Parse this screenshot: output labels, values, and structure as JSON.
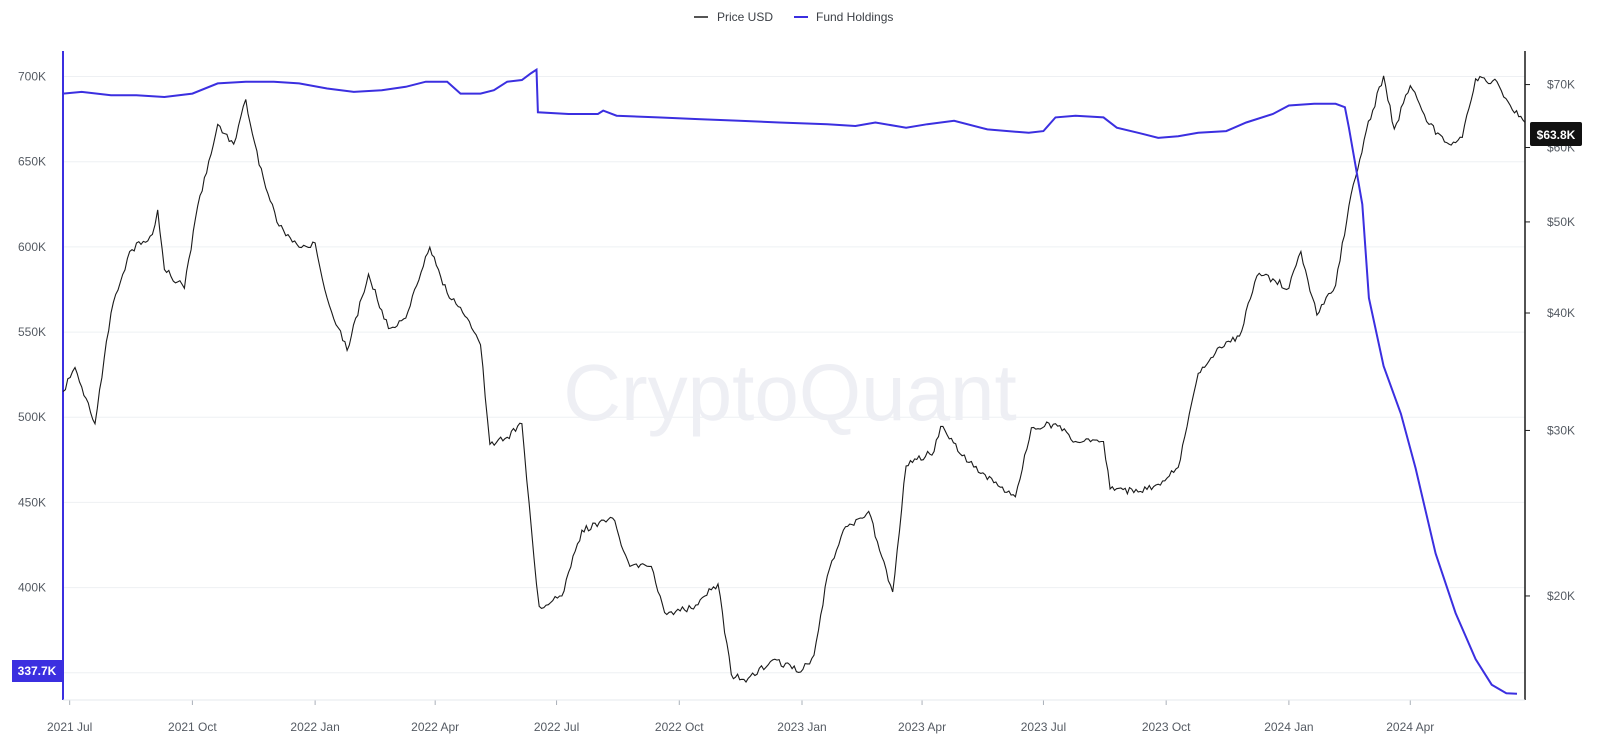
{
  "legend": [
    {
      "label": "Price USD",
      "color": "#555555"
    },
    {
      "label": "Fund Holdings",
      "color": "#3b2fe0"
    }
  ],
  "watermark": "CryptoQuant",
  "chart_data": {
    "type": "line",
    "title": "",
    "x_ticks": [
      "2021 Jul",
      "2021 Oct",
      "2022 Jan",
      "2022 Apr",
      "2022 Jul",
      "2022 Oct",
      "2023 Jan",
      "2023 Apr",
      "2023 Jul",
      "2023 Oct",
      "2024 Jan",
      "2024 Apr"
    ],
    "x_range": [
      "2021-06-26",
      "2024-06-26"
    ],
    "left_axis": {
      "ticks": [
        "350K",
        "400K",
        "450K",
        "500K",
        "550K",
        "600K",
        "650K",
        "700K"
      ],
      "range": [
        334000,
        715000
      ]
    },
    "right_axis": {
      "ticks": [
        "$20K",
        "$30K",
        "$40K",
        "$50K",
        "$60K",
        "$70K"
      ],
      "scale": "log",
      "range": [
        15500,
        76000
      ]
    },
    "last_values": {
      "fund_holdings": "337.7K",
      "price": "$63.8K"
    },
    "grid": true,
    "legend_position": "top-center",
    "series": [
      {
        "name": "Fund Holdings",
        "axis": "left",
        "color": "#3b2fe0",
        "points": [
          [
            "2021-06-26",
            690000
          ],
          [
            "2021-07-10",
            691000
          ],
          [
            "2021-08-01",
            689000
          ],
          [
            "2021-08-20",
            689000
          ],
          [
            "2021-09-10",
            688000
          ],
          [
            "2021-10-01",
            690000
          ],
          [
            "2021-10-20",
            696000
          ],
          [
            "2021-11-10",
            697000
          ],
          [
            "2021-12-01",
            697000
          ],
          [
            "2021-12-20",
            696000
          ],
          [
            "2022-01-10",
            693000
          ],
          [
            "2022-01-30",
            691000
          ],
          [
            "2022-02-20",
            692000
          ],
          [
            "2022-03-10",
            694000
          ],
          [
            "2022-03-25",
            697000
          ],
          [
            "2022-04-10",
            697000
          ],
          [
            "2022-04-20",
            690000
          ],
          [
            "2022-05-05",
            690000
          ],
          [
            "2022-05-15",
            692000
          ],
          [
            "2022-05-25",
            697000
          ],
          [
            "2022-06-05",
            698000
          ],
          [
            "2022-06-12",
            702000
          ],
          [
            "2022-06-16",
            704000
          ],
          [
            "2022-06-17",
            679000
          ],
          [
            "2022-07-10",
            678000
          ],
          [
            "2022-07-20",
            678000
          ],
          [
            "2022-08-01",
            678000
          ],
          [
            "2022-08-05",
            680000
          ],
          [
            "2022-08-15",
            677000
          ],
          [
            "2022-09-15",
            676000
          ],
          [
            "2022-10-15",
            675000
          ],
          [
            "2022-11-15",
            674000
          ],
          [
            "2022-12-15",
            673000
          ],
          [
            "2023-01-20",
            672000
          ],
          [
            "2023-02-10",
            671000
          ],
          [
            "2023-02-25",
            673000
          ],
          [
            "2023-03-20",
            670000
          ],
          [
            "2023-04-05",
            672000
          ],
          [
            "2023-04-25",
            674000
          ],
          [
            "2023-05-20",
            669000
          ],
          [
            "2023-06-20",
            667000
          ],
          [
            "2023-07-01",
            668000
          ],
          [
            "2023-07-10",
            676000
          ],
          [
            "2023-07-25",
            677000
          ],
          [
            "2023-08-15",
            676000
          ],
          [
            "2023-08-25",
            670000
          ],
          [
            "2023-09-10",
            667000
          ],
          [
            "2023-09-25",
            664000
          ],
          [
            "2023-10-10",
            665000
          ],
          [
            "2023-10-25",
            667000
          ],
          [
            "2023-11-15",
            668000
          ],
          [
            "2023-11-30",
            673000
          ],
          [
            "2023-12-20",
            678000
          ],
          [
            "2024-01-01",
            683000
          ],
          [
            "2024-01-20",
            684000
          ],
          [
            "2024-02-05",
            684000
          ],
          [
            "2024-02-12",
            682000
          ],
          [
            "2024-02-15",
            670000
          ],
          [
            "2024-02-25",
            625000
          ],
          [
            "2024-03-01",
            570000
          ],
          [
            "2024-03-12",
            530000
          ],
          [
            "2024-03-25",
            502000
          ],
          [
            "2024-04-05",
            470000
          ],
          [
            "2024-04-20",
            420000
          ],
          [
            "2024-05-05",
            385000
          ],
          [
            "2024-05-20",
            358000
          ],
          [
            "2024-06-01",
            343000
          ],
          [
            "2024-06-12",
            338000
          ],
          [
            "2024-06-20",
            337700
          ]
        ]
      },
      {
        "name": "Price USD",
        "axis": "right",
        "color": "#1a1a1a",
        "points": [
          [
            "2021-06-26",
            33000
          ],
          [
            "2021-07-05",
            35000
          ],
          [
            "2021-07-20",
            30500
          ],
          [
            "2021-08-01",
            40000
          ],
          [
            "2021-08-15",
            46500
          ],
          [
            "2021-09-01",
            48500
          ],
          [
            "2021-09-05",
            51500
          ],
          [
            "2021-09-10",
            44500
          ],
          [
            "2021-09-25",
            42500
          ],
          [
            "2021-10-05",
            52000
          ],
          [
            "2021-10-20",
            63500
          ],
          [
            "2021-11-01",
            60500
          ],
          [
            "2021-11-10",
            67500
          ],
          [
            "2021-11-20",
            57500
          ],
          [
            "2021-12-05",
            49500
          ],
          [
            "2021-12-20",
            47000
          ],
          [
            "2022-01-01",
            47500
          ],
          [
            "2022-01-10",
            41500
          ],
          [
            "2022-01-25",
            36500
          ],
          [
            "2022-02-10",
            44000
          ],
          [
            "2022-02-25",
            38500
          ],
          [
            "2022-03-10",
            39500
          ],
          [
            "2022-03-28",
            47000
          ],
          [
            "2022-04-10",
            42000
          ],
          [
            "2022-04-25",
            39500
          ],
          [
            "2022-05-05",
            37000
          ],
          [
            "2022-05-12",
            29000
          ],
          [
            "2022-05-25",
            29500
          ],
          [
            "2022-06-05",
            30500
          ],
          [
            "2022-06-14",
            22000
          ],
          [
            "2022-06-18",
            19500
          ],
          [
            "2022-07-05",
            20000
          ],
          [
            "2022-07-20",
            23500
          ],
          [
            "2022-08-12",
            24200
          ],
          [
            "2022-08-25",
            21500
          ],
          [
            "2022-09-10",
            21500
          ],
          [
            "2022-09-20",
            19200
          ],
          [
            "2022-10-10",
            19400
          ],
          [
            "2022-10-30",
            20600
          ],
          [
            "2022-11-09",
            16500
          ],
          [
            "2022-11-20",
            16200
          ],
          [
            "2022-12-10",
            17100
          ],
          [
            "2022-12-31",
            16600
          ],
          [
            "2023-01-10",
            17300
          ],
          [
            "2023-01-20",
            21000
          ],
          [
            "2023-02-01",
            23500
          ],
          [
            "2023-02-20",
            24600
          ],
          [
            "2023-03-10",
            20200
          ],
          [
            "2023-03-20",
            27500
          ],
          [
            "2023-04-10",
            28500
          ],
          [
            "2023-04-15",
            30300
          ],
          [
            "2023-05-01",
            28200
          ],
          [
            "2023-05-15",
            27000
          ],
          [
            "2023-06-10",
            25500
          ],
          [
            "2023-06-22",
            30200
          ],
          [
            "2023-07-10",
            30500
          ],
          [
            "2023-07-25",
            29200
          ],
          [
            "2023-08-15",
            29200
          ],
          [
            "2023-08-20",
            26000
          ],
          [
            "2023-09-10",
            25800
          ],
          [
            "2023-09-25",
            26300
          ],
          [
            "2023-10-10",
            27400
          ],
          [
            "2023-10-25",
            34500
          ],
          [
            "2023-11-10",
            36800
          ],
          [
            "2023-11-25",
            37800
          ],
          [
            "2023-12-08",
            43800
          ],
          [
            "2023-12-20",
            43500
          ],
          [
            "2024-01-01",
            42500
          ],
          [
            "2024-01-10",
            46500
          ],
          [
            "2024-01-22",
            39800
          ],
          [
            "2024-02-05",
            42800
          ],
          [
            "2024-02-15",
            52000
          ],
          [
            "2024-02-28",
            62500
          ],
          [
            "2024-03-12",
            71500
          ],
          [
            "2024-03-20",
            62800
          ],
          [
            "2024-04-01",
            69800
          ],
          [
            "2024-04-15",
            63500
          ],
          [
            "2024-04-30",
            60500
          ],
          [
            "2024-05-10",
            61500
          ],
          [
            "2024-05-20",
            71000
          ],
          [
            "2024-06-05",
            70500
          ],
          [
            "2024-06-15",
            66500
          ],
          [
            "2024-06-26",
            63800
          ]
        ]
      }
    ]
  }
}
